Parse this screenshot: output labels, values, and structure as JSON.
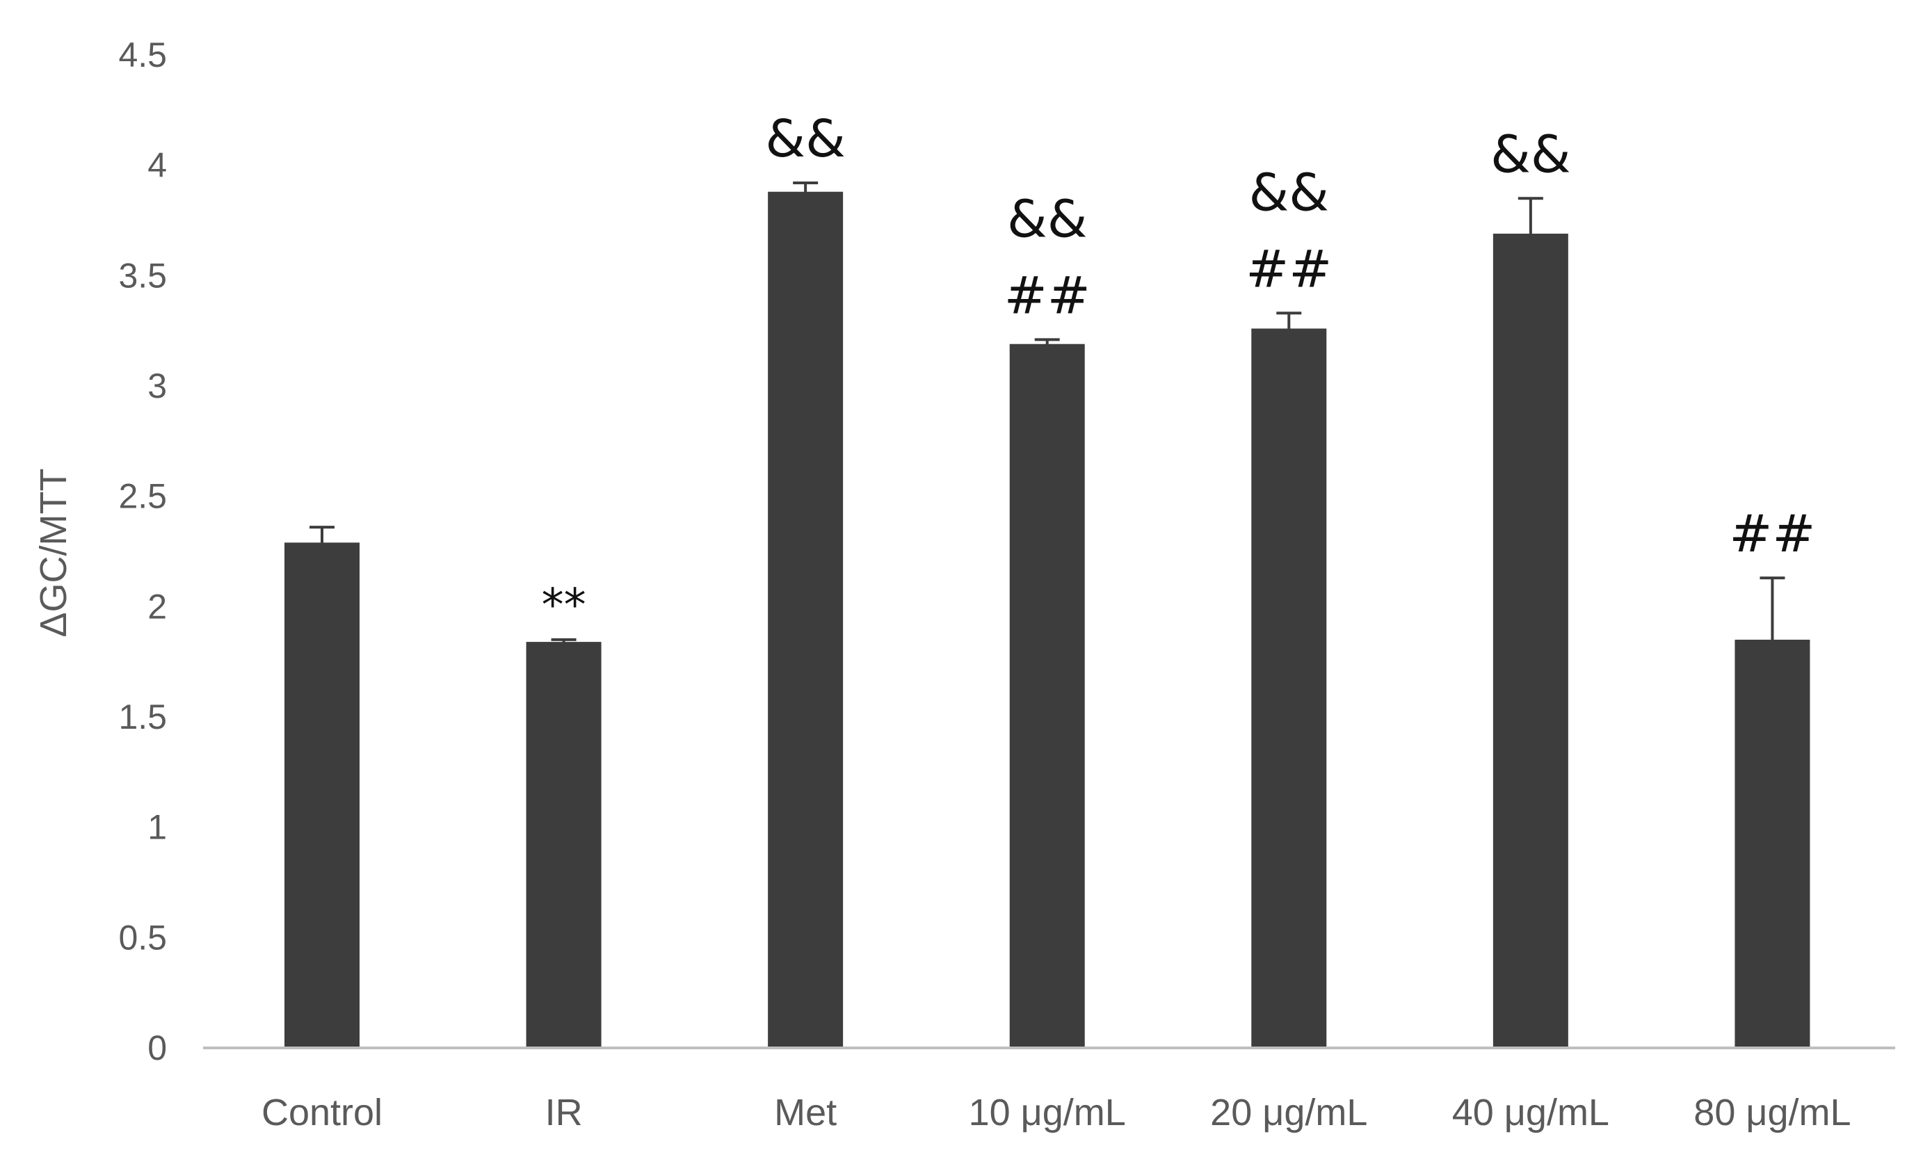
{
  "chart_data": {
    "type": "bar",
    "title": "",
    "xlabel": "",
    "ylabel": "ΔGC/MTT",
    "ylim": [
      0,
      4.5
    ],
    "yticks": [
      "0",
      "0.5",
      "1",
      "1.5",
      "2",
      "2.5",
      "3",
      "3.5",
      "4",
      "4.5"
    ],
    "grid": false,
    "legend": "none",
    "categories": [
      "Control",
      "IR",
      "Met",
      "10 μg/mL",
      "20 μg/mL",
      "40 μg/mL",
      "80 μg/mL"
    ],
    "values": [
      2.29,
      1.84,
      3.88,
      3.19,
      3.26,
      3.69,
      1.85
    ],
    "errors": [
      0.07,
      0.01,
      0.04,
      0.02,
      0.07,
      0.16,
      0.28
    ],
    "annotations": [
      [],
      [
        "**"
      ],
      [
        "&&"
      ],
      [
        "##",
        "&&"
      ],
      [
        "##",
        "&&"
      ],
      [
        "&&"
      ],
      [
        "##"
      ]
    ],
    "colors": {
      "bar": "#3d3d3d",
      "axis": "#bfbfbf",
      "error_bar": "#3d3d3d",
      "text": "#5a5a5a"
    }
  }
}
